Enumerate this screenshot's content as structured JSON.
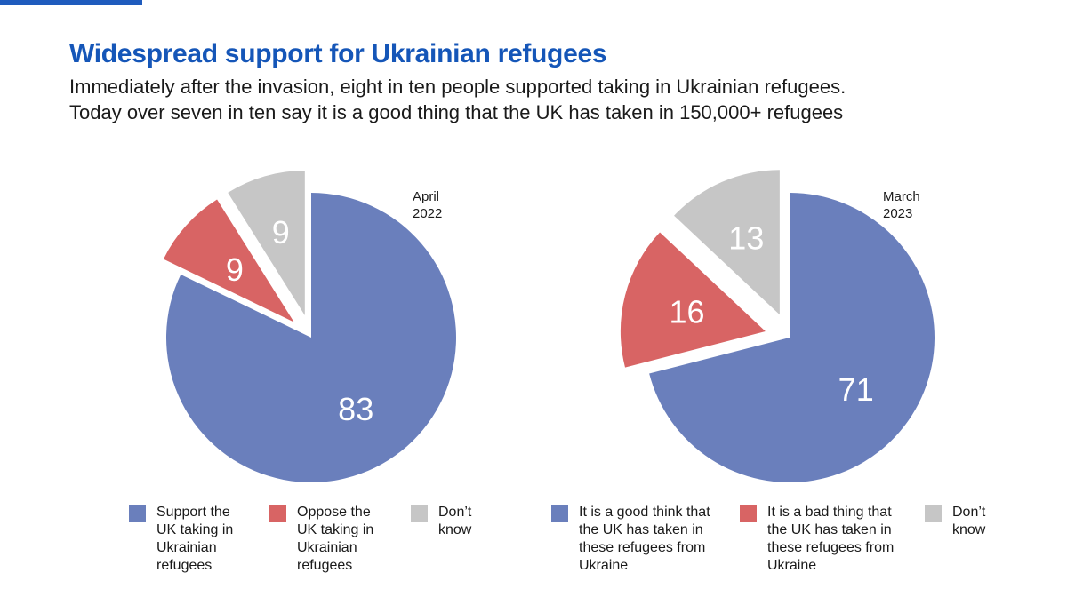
{
  "header": {
    "title": "Widespread support for Ukrainian refugees",
    "subtitle_line1": "Immediately after the invasion, eight in ten people supported taking in Ukrainian refugees.",
    "subtitle_line2": "Today over seven in ten say it is a good thing that the UK has taken in 150,000+ refugees"
  },
  "colors": {
    "accent": "#1556b8",
    "support": "#6a7fbc",
    "oppose": "#d86464",
    "dont_know": "#c6c6c6"
  },
  "chart_data": [
    {
      "type": "pie",
      "period_line1": "April",
      "period_line2": "2022",
      "slices": [
        {
          "label": "Support the UK taking in Ukrainian refugees",
          "value": 83,
          "color": "#6a7fbc"
        },
        {
          "label": "Oppose the UK taking in Ukrainian refugees",
          "value": 9,
          "color": "#d86464"
        },
        {
          "label": "Don't know",
          "value": 9,
          "color": "#c6c6c6"
        }
      ],
      "legend": [
        {
          "lines": [
            "Support the",
            "UK taking in",
            "Ukrainian",
            "refugees"
          ]
        },
        {
          "lines": [
            "Oppose the",
            "UK taking in",
            "Ukrainian",
            "refugees"
          ]
        },
        {
          "lines": [
            "Don’t",
            "know"
          ]
        }
      ]
    },
    {
      "type": "pie",
      "period_line1": "March",
      "period_line2": "2023",
      "slices": [
        {
          "label": "It is a good think that the UK has taken in these refugees from Ukraine",
          "value": 71,
          "color": "#6a7fbc"
        },
        {
          "label": "It is a bad thing that the UK has taken in these refugees from Ukraine",
          "value": 16,
          "color": "#d86464"
        },
        {
          "label": "Don't know",
          "value": 13,
          "color": "#c6c6c6"
        }
      ],
      "legend": [
        {
          "lines": [
            "It is a good think that",
            "the UK has taken in",
            "these refugees from",
            "Ukraine"
          ]
        },
        {
          "lines": [
            "It is a bad thing that",
            "the UK has taken in",
            "these refugees from",
            "Ukraine"
          ]
        },
        {
          "lines": [
            "Don’t",
            "know"
          ]
        }
      ]
    }
  ]
}
